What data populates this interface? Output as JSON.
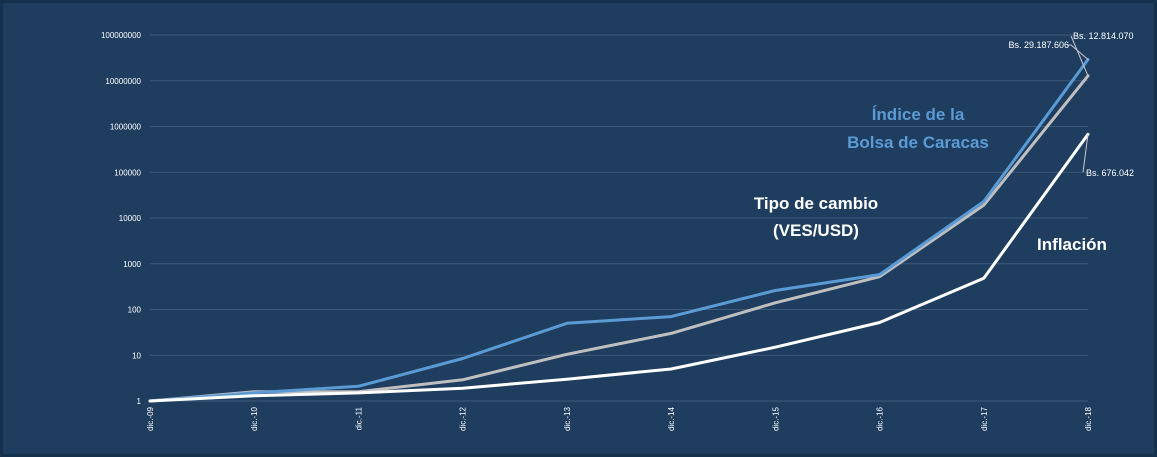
{
  "chart_data": {
    "type": "line",
    "y_scale": "log",
    "ylim": [
      1,
      100000000
    ],
    "y_ticks": [
      "1",
      "10",
      "100",
      "1000",
      "10000",
      "100000",
      "1000000",
      "10000000",
      "100000000"
    ],
    "categories": [
      "dic.-09",
      "dic.-10",
      "dic.-11",
      "dic.-12",
      "dic.-13",
      "dic.-14",
      "dic.-15",
      "dic.-16",
      "dic.-17",
      "dic.-18"
    ],
    "grid": true,
    "series": [
      {
        "name": "Índice de la Bolsa de Caracas",
        "name_lines": [
          "Índice de la",
          "Bolsa de Caracas"
        ],
        "color": "#5b9bd5",
        "values": [
          1,
          1.5,
          2.1,
          8.5,
          50,
          70,
          260,
          580,
          23000,
          29187606
        ]
      },
      {
        "name": "Tipo de cambio (VES/USD)",
        "name_lines": [
          "Tipo de cambio",
          "(VES/USD)"
        ],
        "color": "#bfbfbf",
        "values": [
          1,
          1.6,
          1.6,
          2.9,
          10.5,
          30,
          140,
          520,
          19000,
          12814070
        ]
      },
      {
        "name": "Inflación",
        "name_lines": [
          "Inflación"
        ],
        "color": "#ffffff",
        "values": [
          1,
          1.3,
          1.5,
          1.9,
          3,
          5,
          15,
          52,
          480,
          676042
        ]
      }
    ],
    "annotations": [
      {
        "series": 0,
        "text": "Bs. 29.187.606"
      },
      {
        "series": 1,
        "text": "Bs.  12.814.070"
      },
      {
        "series": 2,
        "text": "Bs. 676.042"
      }
    ]
  }
}
